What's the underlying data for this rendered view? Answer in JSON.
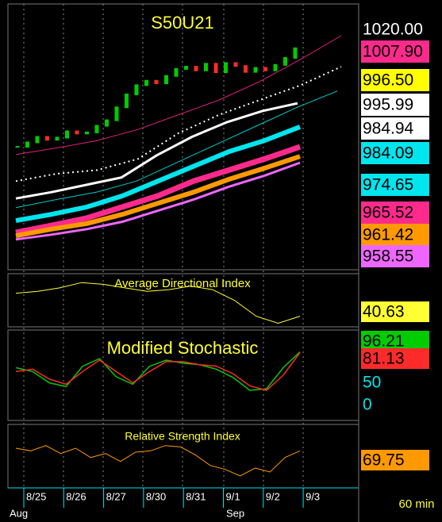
{
  "main": {
    "title": "S50U21",
    "ylim": [
      955,
      1027
    ],
    "price_labels": [
      {
        "text": "1020.00",
        "bg": "#000000",
        "fg": "#ffffff"
      },
      {
        "text": "1007.90",
        "bg": "#ff2a8c",
        "fg": "#000000"
      },
      {
        "text": "996.50",
        "bg": "#ffff00",
        "fg": "#000000"
      },
      {
        "text": "995.99",
        "bg": "#ffffff",
        "fg": "#000000"
      },
      {
        "text": "984.94",
        "bg": "#ffffff",
        "fg": "#000000"
      },
      {
        "text": "984.09",
        "bg": "#00e5ee",
        "fg": "#000000"
      },
      {
        "text": "974.65",
        "bg": "#00e5ee",
        "fg": "#000000"
      },
      {
        "text": "965.52",
        "bg": "#ff2a8c",
        "fg": "#000000"
      },
      {
        "text": "961.42",
        "bg": "#ff9900",
        "fg": "#000000"
      },
      {
        "text": "958.55",
        "bg": "#ee66ff",
        "fg": "#000000"
      }
    ],
    "series": [
      {
        "color": "#e0207a",
        "width": 1,
        "values": [
          986.2,
          988,
          990,
          993,
          997,
          1001,
          1006,
          1012,
          1018.4
        ]
      },
      {
        "color": "#ffffff",
        "width": 2,
        "dash": true,
        "values": [
          979,
          981,
          982,
          985,
          992,
          997,
          1001,
          1005,
          1010
        ]
      },
      {
        "color": "#ffffff",
        "width": 3,
        "values": [
          974.3,
          976,
          978,
          980,
          986,
          991,
          995,
          998,
          1000.1
        ]
      },
      {
        "color": "#00cccc",
        "width": 1,
        "values": [
          971.8,
          974,
          976,
          979,
          984,
          989,
          994,
          999,
          1003.4
        ]
      },
      {
        "color": "#00e5ee",
        "width": 6,
        "values": [
          968.3,
          970,
          972,
          975,
          979,
          983,
          987,
          990,
          993.7
        ]
      },
      {
        "color": "#ff2a8c",
        "width": 7,
        "values": [
          965.1,
          967,
          969,
          972,
          975,
          979,
          982,
          985,
          988.3
        ]
      },
      {
        "color": "#ff9900",
        "width": 6,
        "values": [
          964.2,
          966,
          967.5,
          970,
          973,
          976,
          979.5,
          982.5,
          985.7
        ]
      },
      {
        "color": "#ee66ff",
        "width": 3,
        "values": [
          963.2,
          964.5,
          966,
          968,
          971,
          974,
          977.5,
          980.5,
          984
        ]
      }
    ],
    "closes": [
      988.3,
      989.5,
      991,
      990.2,
      990.8,
      992.5,
      991.9,
      992.2,
      994,
      995.5,
      999,
      1002.5,
      1005,
      1006.2,
      1005.5,
      1007.5,
      1009.4,
      1010,
      1009,
      1010.8,
      1008.5,
      1011,
      1010.2,
      1008.6,
      1009.7,
      1009,
      1010.5,
      1012.4,
      1015
    ]
  },
  "adx": {
    "title": "Average Directional Index",
    "ylim": [
      30,
      60
    ],
    "label": "40.63",
    "color": "#ffff33",
    "values": [
      49,
      50,
      52,
      55,
      54,
      52,
      50,
      51,
      53,
      51,
      45,
      36,
      32,
      36
    ]
  },
  "stochastic": {
    "title": "Modified Stochastic",
    "ylim": [
      -10,
      110
    ],
    "labels": [
      {
        "text": "96.21",
        "bg": "#00cc00",
        "fg": "#000000"
      },
      {
        "text": "81.13",
        "bg": "#ff2a2a",
        "fg": "#000000"
      },
      {
        "text": "50",
        "bg": "#000000",
        "fg": "#00e5ee"
      },
      {
        "text": "0",
        "bg": "#000000",
        "fg": "#00e5ee"
      }
    ],
    "series": [
      {
        "color": "#00cc00",
        "values": [
          60,
          55,
          40,
          35,
          62,
          72,
          48,
          38,
          62,
          70,
          66,
          64,
          58,
          47,
          30,
          32,
          60,
          81
        ]
      },
      {
        "color": "#ff2a2a",
        "values": [
          55,
          58,
          45,
          38,
          55,
          70,
          55,
          40,
          55,
          68,
          68,
          64,
          62,
          52,
          36,
          30,
          50,
          80
        ]
      }
    ]
  },
  "rsi": {
    "title": "Relative Strength Index",
    "ylim": [
      40,
      85
    ],
    "label": "69.75",
    "color": "#ff9900",
    "values": [
      70,
      68,
      72,
      66,
      70,
      63,
      66,
      60,
      67,
      68,
      72,
      71,
      65,
      57,
      54,
      49,
      55,
      52,
      63,
      68
    ]
  },
  "xaxis": {
    "dates": [
      "8/25",
      "8/26",
      "8/27",
      "8/30",
      "8/31",
      "9/1",
      "9/2",
      "9/3"
    ],
    "months": [
      "Aug",
      "Sep"
    ],
    "interval": "60 min"
  }
}
